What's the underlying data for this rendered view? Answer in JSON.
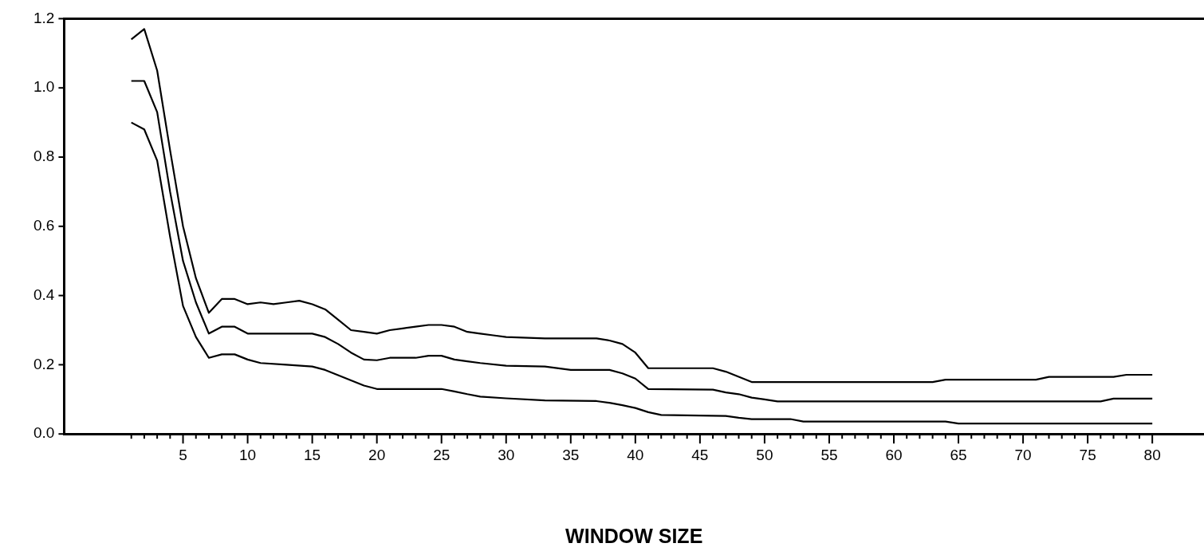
{
  "chart_data": {
    "type": "line",
    "xlabel": "WINDOW SIZE",
    "xlim": [
      -4.2,
      84
    ],
    "ylim": [
      0,
      1.2
    ],
    "xticks": [
      {
        "value": 1,
        "label": null
      },
      {
        "value": 2,
        "label": null
      },
      {
        "value": 3,
        "label": null
      },
      {
        "value": 4,
        "label": null
      },
      5,
      {
        "value": 6,
        "label": null
      },
      {
        "value": 7,
        "label": null
      },
      {
        "value": 8,
        "label": null
      },
      {
        "value": 9,
        "label": null
      },
      10,
      {
        "value": 11,
        "label": null
      },
      {
        "value": 12,
        "label": null
      },
      {
        "value": 13,
        "label": null
      },
      {
        "value": 14,
        "label": null
      },
      15,
      {
        "value": 16,
        "label": null
      },
      {
        "value": 17,
        "label": null
      },
      {
        "value": 18,
        "label": null
      },
      {
        "value": 19,
        "label": null
      },
      20,
      {
        "value": 21,
        "label": null
      },
      {
        "value": 22,
        "label": null
      },
      {
        "value": 23,
        "label": null
      },
      {
        "value": 24,
        "label": null
      },
      25,
      {
        "value": 26,
        "label": null
      },
      {
        "value": 27,
        "label": null
      },
      {
        "value": 28,
        "label": null
      },
      {
        "value": 29,
        "label": null
      },
      30,
      {
        "value": 31,
        "label": null
      },
      {
        "value": 32,
        "label": null
      },
      {
        "value": 33,
        "label": null
      },
      {
        "value": 34,
        "label": null
      },
      35,
      {
        "value": 36,
        "label": null
      },
      {
        "value": 37,
        "label": null
      },
      {
        "value": 38,
        "label": null
      },
      {
        "value": 39,
        "label": null
      },
      40,
      {
        "value": 41,
        "label": null
      },
      {
        "value": 42,
        "label": null
      },
      {
        "value": 43,
        "label": null
      },
      {
        "value": 44,
        "label": null
      },
      45,
      {
        "value": 46,
        "label": null
      },
      {
        "value": 47,
        "label": null
      },
      {
        "value": 48,
        "label": null
      },
      {
        "value": 49,
        "label": null
      },
      50,
      {
        "value": 51,
        "label": null
      },
      {
        "value": 52,
        "label": null
      },
      {
        "value": 53,
        "label": null
      },
      {
        "value": 54,
        "label": null
      },
      55,
      {
        "value": 56,
        "label": null
      },
      {
        "value": 57,
        "label": null
      },
      {
        "value": 58,
        "label": null
      },
      {
        "value": 59,
        "label": null
      },
      60,
      {
        "value": 61,
        "label": null
      },
      {
        "value": 62,
        "label": null
      },
      {
        "value": 63,
        "label": null
      },
      {
        "value": 64,
        "label": null
      },
      65,
      {
        "value": 66,
        "label": null
      },
      {
        "value": 67,
        "label": null
      },
      {
        "value": 68,
        "label": null
      },
      {
        "value": 69,
        "label": null
      },
      70,
      {
        "value": 71,
        "label": null
      },
      {
        "value": 72,
        "label": null
      },
      {
        "value": 73,
        "label": null
      },
      {
        "value": 74,
        "label": null
      },
      75,
      {
        "value": 76,
        "label": null
      },
      {
        "value": 77,
        "label": null
      },
      {
        "value": 78,
        "label": null
      },
      {
        "value": 79,
        "label": null
      },
      80
    ],
    "yticks": [
      {
        "value": 0,
        "label": "0.0"
      },
      {
        "value": 0.2,
        "label": "0.2"
      },
      {
        "value": 0.4,
        "label": "0.4"
      },
      {
        "value": 0.6,
        "label": "0.6"
      },
      {
        "value": 0.8,
        "label": "0.8"
      },
      {
        "value": 1.0,
        "label": "1.0"
      },
      {
        "value": 1.2,
        "label": "1.2"
      }
    ],
    "grid": false,
    "legend": false,
    "marker": "none",
    "line_style": "solid",
    "series": [
      {
        "color": "#000000",
        "x": [
          1,
          2,
          3,
          4,
          5,
          6,
          7,
          8,
          9,
          10,
          11,
          12,
          13,
          14,
          15,
          16,
          17,
          18,
          19,
          20,
          21,
          22,
          23,
          24,
          25,
          26,
          27,
          28,
          29,
          30,
          33,
          37,
          38,
          39,
          40,
          41,
          46,
          47,
          48,
          49,
          63,
          64,
          71,
          72,
          77,
          78,
          80
        ],
        "values": [
          1.14,
          1.17,
          1.05,
          0.82,
          0.6,
          0.45,
          0.35,
          0.39,
          0.39,
          0.375,
          0.38,
          0.375,
          0.38,
          0.385,
          0.375,
          0.36,
          0.33,
          0.3,
          0.295,
          0.29,
          0.3,
          0.305,
          0.31,
          0.315,
          0.315,
          0.31,
          0.295,
          0.29,
          0.285,
          0.28,
          0.276,
          0.276,
          0.27,
          0.26,
          0.235,
          0.19,
          0.19,
          0.18,
          0.165,
          0.15,
          0.15,
          0.157,
          0.157,
          0.165,
          0.165,
          0.171,
          0.171
        ]
      },
      {
        "color": "#000000",
        "x": [
          1,
          2,
          3,
          4,
          5,
          6,
          7,
          8,
          9,
          10,
          15,
          16,
          17,
          18,
          19,
          20,
          21,
          23,
          24,
          25,
          26,
          27,
          28,
          30,
          33,
          35,
          38,
          39,
          40,
          41,
          46,
          47,
          48,
          49,
          50,
          51,
          76,
          77,
          80
        ],
        "values": [
          1.02,
          1.02,
          0.93,
          0.7,
          0.5,
          0.38,
          0.29,
          0.31,
          0.31,
          0.29,
          0.29,
          0.28,
          0.26,
          0.235,
          0.215,
          0.213,
          0.22,
          0.22,
          0.226,
          0.226,
          0.215,
          0.21,
          0.205,
          0.197,
          0.195,
          0.185,
          0.185,
          0.175,
          0.16,
          0.13,
          0.128,
          0.12,
          0.115,
          0.105,
          0.1,
          0.094,
          0.094,
          0.102,
          0.102
        ]
      },
      {
        "color": "#000000",
        "x": [
          1,
          2,
          3,
          4,
          5,
          6,
          7,
          8,
          9,
          10,
          11,
          13,
          15,
          16,
          17,
          18,
          19,
          20,
          25,
          26,
          27,
          28,
          30,
          33,
          37,
          38,
          39,
          40,
          41,
          42,
          47,
          48,
          49,
          52,
          53,
          64,
          65,
          80
        ],
        "values": [
          0.9,
          0.88,
          0.79,
          0.57,
          0.37,
          0.28,
          0.22,
          0.23,
          0.23,
          0.215,
          0.205,
          0.2,
          0.195,
          0.185,
          0.17,
          0.155,
          0.14,
          0.13,
          0.13,
          0.123,
          0.115,
          0.108,
          0.103,
          0.097,
          0.095,
          0.09,
          0.083,
          0.075,
          0.063,
          0.055,
          0.052,
          0.047,
          0.043,
          0.043,
          0.036,
          0.036,
          0.03,
          0.03
        ]
      }
    ]
  }
}
